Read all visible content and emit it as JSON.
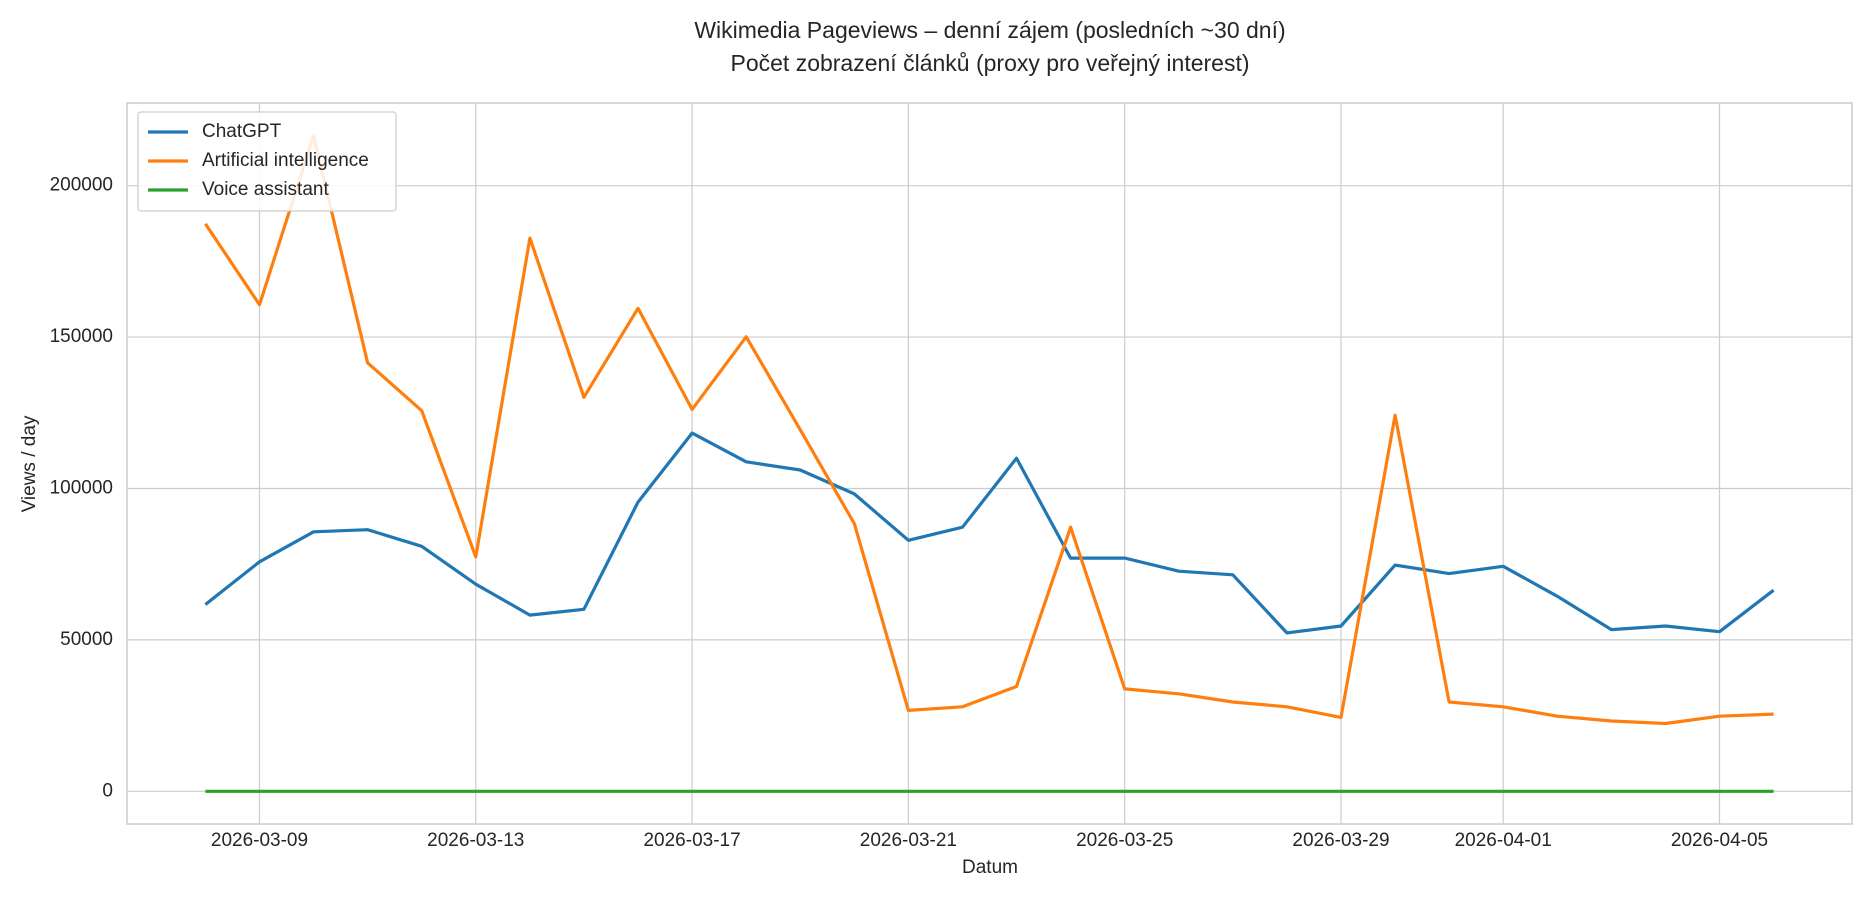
{
  "chart_data": {
    "type": "line",
    "title": "Wikimedia Pageviews – denní zájem (posledních ~30 dní)",
    "subtitle": "Počet zobrazení článků (proxy pro veřejný interest)",
    "x_label": "Datum",
    "y_label": "Views / day",
    "x": [
      "2026-03-08",
      "2026-03-09",
      "2026-03-10",
      "2026-03-11",
      "2026-03-12",
      "2026-03-13",
      "2026-03-14",
      "2026-03-15",
      "2026-03-16",
      "2026-03-17",
      "2026-03-18",
      "2026-03-19",
      "2026-03-20",
      "2026-03-21",
      "2026-03-22",
      "2026-03-23",
      "2026-03-24",
      "2026-03-25",
      "2026-03-26",
      "2026-03-27",
      "2026-03-28",
      "2026-03-29",
      "2026-03-30",
      "2026-03-31",
      "2026-04-01",
      "2026-04-02",
      "2026-04-03",
      "2026-04-04",
      "2026-04-05",
      "2026-04-06"
    ],
    "series": [
      {
        "name": "ChatGPT",
        "color": "#1f77b4",
        "values": [
          61700,
          75800,
          85700,
          86400,
          80900,
          68400,
          58200,
          60100,
          95500,
          118300,
          108800,
          106100,
          98200,
          82900,
          87200,
          110000,
          77000,
          77000,
          72700,
          71500,
          52300,
          54600,
          74700,
          71900,
          74300,
          64400,
          53400,
          54600,
          52700,
          66400
        ]
      },
      {
        "name": "Artificial intelligence",
        "color": "#ff7f0e",
        "values": [
          187400,
          160700,
          216500,
          141500,
          125700,
          77400,
          182700,
          130100,
          159500,
          126100,
          150100,
          119400,
          88400,
          26700,
          27900,
          34600,
          87200,
          33800,
          32200,
          29500,
          27900,
          24400,
          124200,
          29500,
          27900,
          24800,
          23200,
          22400,
          24800,
          25500
        ]
      },
      {
        "name": "Voice assistant",
        "color": "#2ca02c",
        "values": [
          0,
          0,
          0,
          0,
          0,
          0,
          0,
          0,
          0,
          0,
          0,
          0,
          0,
          0,
          0,
          0,
          0,
          0,
          0,
          0,
          0,
          0,
          0,
          0,
          0,
          0,
          0,
          0,
          0,
          0
        ]
      }
    ],
    "xlim": [
      "2026-03-08",
      "2026-04-06"
    ],
    "xticks": [
      "2026-03-09",
      "2026-03-13",
      "2026-03-17",
      "2026-03-21",
      "2026-03-25",
      "2026-03-29",
      "2026-04-01",
      "2026-04-05"
    ],
    "ylim": [
      -10800,
      227300
    ],
    "yticks": [
      0,
      50000,
      100000,
      150000,
      200000
    ],
    "grid": true,
    "legend": "upper left"
  }
}
